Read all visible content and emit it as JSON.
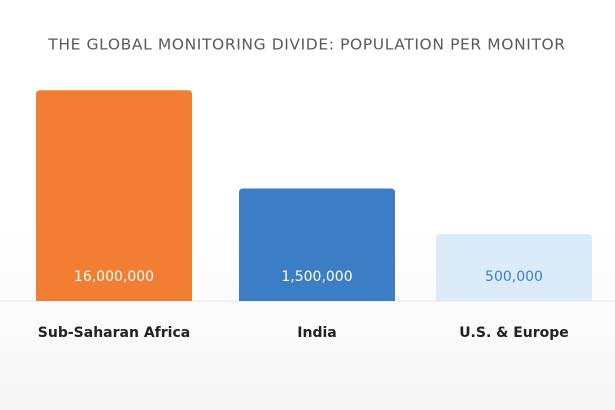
{
  "chart_data": {
    "type": "bar",
    "title": "THE GLOBAL MONITORING DIVIDE: POPULATION PER MONITOR",
    "categories": [
      "Sub-Saharan Africa",
      "India",
      "U.S. & Europe"
    ],
    "values": [
      16000000,
      1500000,
      500000
    ],
    "value_labels": [
      "16,000,000",
      "1,500,000",
      "500,000"
    ],
    "colors": [
      "#f27e34",
      "#3b7ec6",
      "#dcebfa"
    ],
    "log_scale": true,
    "ylim": [
      100000,
      20000000
    ],
    "grid": false
  }
}
